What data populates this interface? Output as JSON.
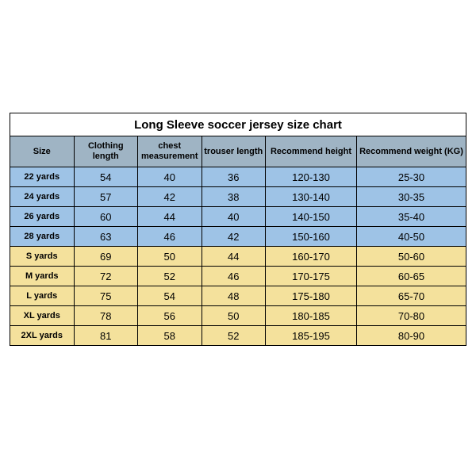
{
  "table": {
    "type": "table",
    "title": "Long Sleeve soccer jersey size chart",
    "columns": [
      "Size",
      "Clothing length",
      "chest measurement",
      "trouser length",
      "Recommend height",
      "Recommend weight (KG)"
    ],
    "column_widths_pct": [
      14,
      14,
      14,
      14,
      20,
      24
    ],
    "header_bg": "#9fb4c4",
    "group1_bg": "#9ec3e6",
    "group2_bg": "#f4e19c",
    "border_color": "#000000",
    "title_bg": "#ffffff",
    "title_fontsize": 15,
    "header_fontsize": 11,
    "cell_fontsize": 13,
    "size_col_fontsize": 11,
    "rows": [
      {
        "group": 1,
        "cells": [
          "22 yards",
          "54",
          "40",
          "36",
          "120-130",
          "25-30"
        ]
      },
      {
        "group": 1,
        "cells": [
          "24 yards",
          "57",
          "42",
          "38",
          "130-140",
          "30-35"
        ]
      },
      {
        "group": 1,
        "cells": [
          "26 yards",
          "60",
          "44",
          "40",
          "140-150",
          "35-40"
        ]
      },
      {
        "group": 1,
        "cells": [
          "28 yards",
          "63",
          "46",
          "42",
          "150-160",
          "40-50"
        ]
      },
      {
        "group": 2,
        "cells": [
          "S yards",
          "69",
          "50",
          "44",
          "160-170",
          "50-60"
        ]
      },
      {
        "group": 2,
        "cells": [
          "M yards",
          "72",
          "52",
          "46",
          "170-175",
          "60-65"
        ]
      },
      {
        "group": 2,
        "cells": [
          "L yards",
          "75",
          "54",
          "48",
          "175-180",
          "65-70"
        ]
      },
      {
        "group": 2,
        "cells": [
          "XL yards",
          "78",
          "56",
          "50",
          "180-185",
          "70-80"
        ]
      },
      {
        "group": 2,
        "cells": [
          "2XL yards",
          "81",
          "58",
          "52",
          "185-195",
          "80-90"
        ]
      }
    ]
  }
}
